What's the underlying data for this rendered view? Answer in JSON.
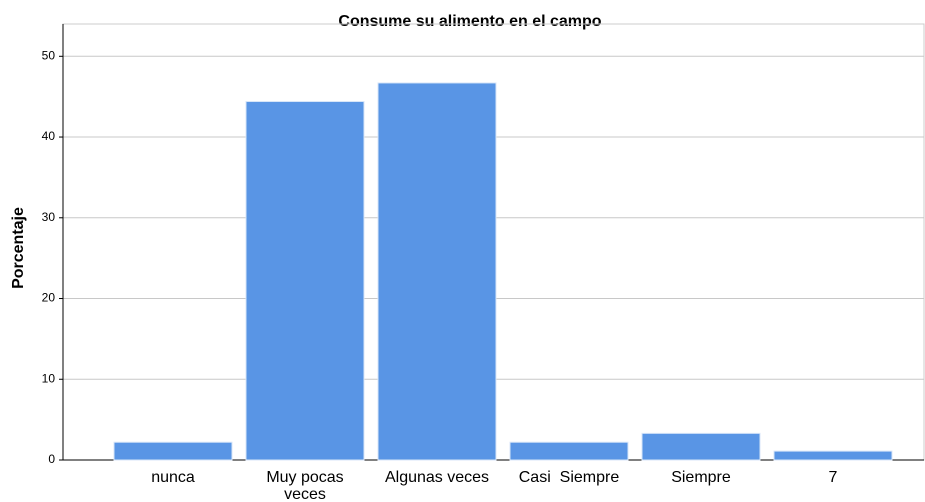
{
  "chart_data": {
    "type": "bar",
    "title": "Consume su alimento en el campo",
    "y_label": "Porcentaje",
    "categories": [
      "nunca",
      "Muy pocas veces",
      "Algunas veces",
      "Casi  Siempre",
      "Siempre",
      "7"
    ],
    "values": [
      2.2,
      44.4,
      46.7,
      2.2,
      3.3,
      1.1
    ],
    "color": "#5995e5",
    "ylim": [
      0,
      54
    ],
    "yticks": [
      0,
      10,
      20,
      30,
      40,
      50
    ],
    "grid": true
  }
}
